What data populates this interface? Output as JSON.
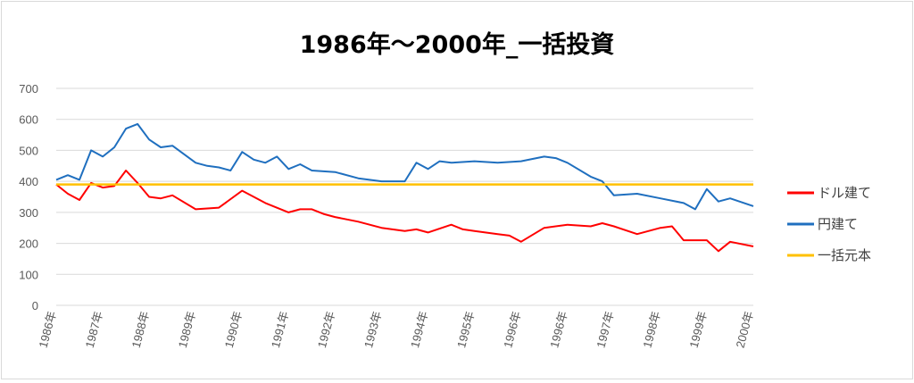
{
  "chart_data": {
    "type": "line",
    "title": "1986年～2000年_一括投資",
    "xlabel": "",
    "ylabel": "",
    "ylim": [
      0,
      700
    ],
    "yticks": [
      0,
      100,
      200,
      300,
      400,
      500,
      600,
      700
    ],
    "x_tick_labels": [
      "1986年",
      "1987年",
      "1988年",
      "1989年",
      "1990年",
      "1991年",
      "1992年",
      "1993年",
      "1994年",
      "1995年",
      "1996年",
      "1996年",
      "1997年",
      "1998年",
      "1999年",
      "2000年"
    ],
    "grid": true,
    "legend_position": "right",
    "series": [
      {
        "name": "ドル建て",
        "color": "#ff0000",
        "x": [
          0,
          0.25,
          0.5,
          0.75,
          1.0,
          1.25,
          1.5,
          1.75,
          2.0,
          2.25,
          2.5,
          3.0,
          3.5,
          4.0,
          4.5,
          5.0,
          5.25,
          5.5,
          5.75,
          6.0,
          6.5,
          7.0,
          7.5,
          7.75,
          8.0,
          8.5,
          8.75,
          9.0,
          9.5,
          9.75,
          10.0,
          10.5,
          11.0,
          11.5,
          11.75,
          12.0,
          12.5,
          13.0,
          13.25,
          13.5,
          14.0,
          14.25,
          14.5,
          15.0
        ],
        "values": [
          390,
          360,
          340,
          395,
          380,
          385,
          435,
          395,
          350,
          345,
          355,
          310,
          315,
          370,
          330,
          300,
          310,
          310,
          295,
          285,
          270,
          250,
          240,
          245,
          235,
          260,
          245,
          240,
          230,
          225,
          205,
          250,
          260,
          255,
          265,
          255,
          230,
          250,
          255,
          210,
          210,
          175,
          205,
          190
        ]
      },
      {
        "name": "円建て",
        "color": "#1f6fbf",
        "x": [
          0,
          0.25,
          0.5,
          0.75,
          1.0,
          1.25,
          1.5,
          1.75,
          2.0,
          2.25,
          2.5,
          3.0,
          3.25,
          3.5,
          3.75,
          4.0,
          4.25,
          4.5,
          4.75,
          5.0,
          5.25,
          5.5,
          6.0,
          6.5,
          7.0,
          7.5,
          7.75,
          8.0,
          8.25,
          8.5,
          9.0,
          9.5,
          10.0,
          10.5,
          10.75,
          11.0,
          11.5,
          11.75,
          12.0,
          12.5,
          13.0,
          13.5,
          13.75,
          14.0,
          14.25,
          14.5,
          15.0
        ],
        "values": [
          405,
          420,
          405,
          500,
          480,
          510,
          570,
          585,
          535,
          510,
          515,
          460,
          450,
          445,
          435,
          495,
          470,
          460,
          480,
          440,
          455,
          435,
          430,
          410,
          400,
          400,
          460,
          440,
          465,
          460,
          465,
          460,
          465,
          480,
          475,
          460,
          415,
          400,
          355,
          360,
          345,
          330,
          310,
          375,
          335,
          345,
          320
        ]
      },
      {
        "name": "一括元本",
        "color": "#ffc000",
        "x": [
          0,
          15
        ],
        "values": [
          390,
          390
        ]
      }
    ]
  }
}
